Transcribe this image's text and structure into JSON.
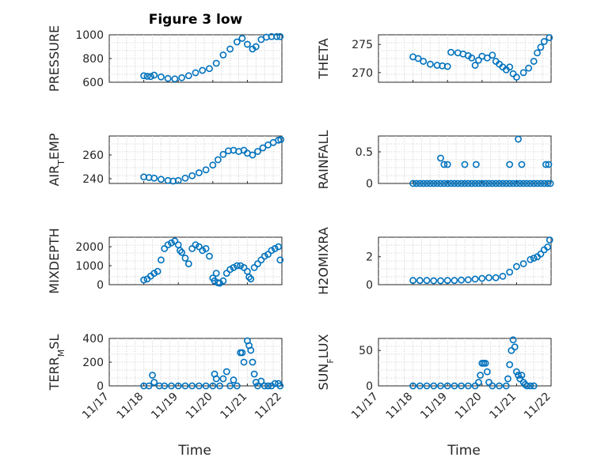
{
  "chart_data": [
    {
      "type": "scatter",
      "title": "Figure 3 low",
      "ylabel": "PRESSURE",
      "ylim": [
        600,
        1000
      ],
      "yticks": [
        {
          "v": 600,
          "t": "600"
        },
        {
          "v": 800,
          "t": "800"
        },
        {
          "v": 1000,
          "t": "1000"
        }
      ],
      "x": [
        18.0,
        18.1,
        18.2,
        18.3,
        18.5,
        18.7,
        18.9,
        19.1,
        19.3,
        19.5,
        19.7,
        19.9,
        20.1,
        20.3,
        20.5,
        20.7,
        20.85,
        21.0,
        21.15,
        21.25,
        21.4,
        21.55,
        21.7,
        21.85,
        21.95
      ],
      "values": [
        655,
        650,
        648,
        660,
        645,
        632,
        628,
        638,
        655,
        680,
        700,
        715,
        760,
        830,
        880,
        940,
        970,
        920,
        880,
        900,
        960,
        980,
        985,
        985,
        985
      ]
    },
    {
      "type": "scatter",
      "title": "",
      "ylabel": "THETA",
      "ylim": [
        268.3,
        276.7
      ],
      "yticks": [
        {
          "v": 270,
          "t": "270"
        },
        {
          "v": 275,
          "t": "275"
        }
      ],
      "x": [
        18.0,
        18.15,
        18.3,
        18.5,
        18.7,
        18.85,
        19.0,
        19.1,
        19.3,
        19.45,
        19.6,
        19.7,
        19.8,
        19.9,
        20.0,
        20.15,
        20.3,
        20.4,
        20.5,
        20.6,
        20.7,
        20.8,
        20.9,
        21.0,
        21.2,
        21.35,
        21.5,
        21.6,
        21.7,
        21.8,
        21.95
      ],
      "values": [
        272.8,
        272.5,
        272.0,
        271.5,
        271.3,
        271.2,
        271.1,
        273.6,
        273.5,
        273.3,
        273.0,
        272.6,
        271.3,
        272.2,
        272.9,
        272.6,
        273.1,
        272.0,
        271.5,
        271.0,
        270.5,
        271.0,
        269.8,
        269.2,
        270.0,
        270.8,
        272.0,
        273.5,
        274.5,
        275.5,
        276.2
      ]
    },
    {
      "type": "scatter",
      "title": "",
      "ylabel": "AIR_TEMP",
      "ylim": [
        236,
        276
      ],
      "yticks": [
        {
          "v": 240,
          "t": "240"
        },
        {
          "v": 260,
          "t": "260"
        }
      ],
      "x": [
        18.0,
        18.15,
        18.3,
        18.5,
        18.7,
        18.85,
        19.0,
        19.2,
        19.4,
        19.6,
        19.8,
        20.0,
        20.15,
        20.3,
        20.45,
        20.6,
        20.75,
        20.9,
        21.0,
        21.15,
        21.3,
        21.45,
        21.6,
        21.75,
        21.9,
        21.97
      ],
      "values": [
        241.5,
        241.0,
        240.5,
        239.5,
        238.5,
        238.0,
        238.5,
        240.5,
        242.5,
        245.0,
        247.5,
        251.5,
        256.0,
        260.5,
        263.5,
        264.0,
        263.0,
        264.0,
        261.5,
        260.0,
        263.0,
        266.0,
        268.5,
        270.5,
        272.5,
        273.0
      ]
    },
    {
      "type": "scatter",
      "title": "",
      "ylabel": "RAINFALL",
      "ylim": [
        0,
        0.75
      ],
      "yticks": [
        {
          "v": 0,
          "t": "0"
        },
        {
          "v": 0.5,
          "t": "0.5"
        }
      ],
      "x": [
        18.0,
        18.1,
        18.2,
        18.3,
        18.4,
        18.5,
        18.6,
        18.7,
        18.8,
        18.9,
        19.0,
        19.1,
        19.2,
        19.3,
        19.4,
        19.5,
        19.6,
        19.7,
        19.8,
        19.9,
        20.0,
        20.1,
        20.2,
        20.3,
        20.4,
        20.5,
        20.6,
        20.7,
        20.8,
        20.9,
        21.0,
        21.1,
        21.2,
        21.3,
        21.4,
        21.5,
        21.6,
        21.7,
        21.8,
        21.9,
        21.98,
        18.8,
        18.9,
        19.0,
        19.5,
        19.83,
        20.8,
        21.05,
        21.15,
        21.85,
        21.93
      ],
      "values": [
        0,
        0,
        0,
        0,
        0,
        0,
        0,
        0,
        0,
        0,
        0,
        0,
        0,
        0,
        0,
        0,
        0,
        0,
        0,
        0,
        0,
        0,
        0,
        0,
        0,
        0,
        0,
        0,
        0,
        0,
        0,
        0,
        0,
        0,
        0,
        0,
        0,
        0,
        0,
        0,
        0,
        0.4,
        0.3,
        0.3,
        0.3,
        0.3,
        0.3,
        0.7,
        0.3,
        0.3,
        0.3
      ]
    },
    {
      "type": "scatter",
      "title": "",
      "ylabel": "MIXDEPTH",
      "ylim": [
        0,
        2500
      ],
      "yticks": [
        {
          "v": 0,
          "t": "0"
        },
        {
          "v": 1000,
          "t": "1000"
        },
        {
          "v": 2000,
          "t": "2000"
        }
      ],
      "x": [
        18.0,
        18.1,
        18.2,
        18.3,
        18.4,
        18.5,
        18.6,
        18.7,
        18.8,
        18.9,
        19.0,
        19.05,
        19.1,
        19.2,
        19.3,
        19.4,
        19.5,
        19.6,
        19.7,
        19.8,
        19.9,
        20.0,
        20.05,
        20.1,
        20.15,
        20.2,
        20.3,
        20.4,
        20.5,
        20.6,
        20.7,
        20.8,
        20.9,
        21.0,
        21.05,
        21.1,
        21.2,
        21.3,
        21.4,
        21.5,
        21.6,
        21.7,
        21.8,
        21.9,
        21.95
      ],
      "values": [
        250,
        300,
        450,
        600,
        700,
        1300,
        1900,
        2100,
        2200,
        2300,
        2100,
        1800,
        1700,
        1400,
        1100,
        1900,
        2100,
        2000,
        1800,
        1900,
        1500,
        350,
        200,
        600,
        100,
        80,
        200,
        600,
        800,
        900,
        1000,
        1000,
        900,
        700,
        400,
        300,
        900,
        1100,
        1300,
        1500,
        1600,
        1800,
        1900,
        2000,
        1300
      ]
    },
    {
      "type": "scatter",
      "title": "",
      "ylabel": "H2OMIXRA",
      "ylim": [
        0,
        3.4
      ],
      "yticks": [
        {
          "v": 0,
          "t": "0"
        },
        {
          "v": 2,
          "t": "2"
        }
      ],
      "x": [
        18.0,
        18.2,
        18.4,
        18.6,
        18.8,
        19.0,
        19.2,
        19.4,
        19.6,
        19.8,
        20.0,
        20.2,
        20.4,
        20.6,
        20.8,
        21.0,
        21.2,
        21.4,
        21.5,
        21.6,
        21.7,
        21.8,
        21.9,
        21.96
      ],
      "values": [
        0.3,
        0.3,
        0.3,
        0.28,
        0.28,
        0.3,
        0.3,
        0.33,
        0.35,
        0.4,
        0.45,
        0.5,
        0.5,
        0.6,
        0.9,
        1.3,
        1.5,
        1.8,
        1.9,
        2.0,
        2.2,
        2.5,
        2.7,
        3.2
      ]
    },
    {
      "type": "scatter",
      "title": "",
      "ylabel": "TERR_MSL",
      "ylim": [
        0,
        400
      ],
      "yticks": [
        {
          "v": 0,
          "t": "0"
        },
        {
          "v": 200,
          "t": "200"
        },
        {
          "v": 400,
          "t": "400"
        }
      ],
      "x": [
        18.0,
        18.15,
        18.25,
        18.3,
        18.45,
        18.6,
        18.8,
        19.0,
        19.2,
        19.4,
        19.6,
        19.8,
        20.0,
        20.05,
        20.1,
        20.2,
        20.3,
        20.4,
        20.5,
        20.6,
        20.7,
        20.8,
        20.85,
        20.9,
        21.0,
        21.05,
        21.1,
        21.15,
        21.2,
        21.25,
        21.3,
        21.4,
        21.5,
        21.6,
        21.7,
        21.8,
        21.9,
        21.95
      ],
      "values": [
        0,
        0,
        90,
        30,
        0,
        0,
        0,
        0,
        0,
        0,
        0,
        0,
        0,
        100,
        60,
        0,
        60,
        120,
        0,
        50,
        0,
        280,
        280,
        200,
        380,
        340,
        300,
        200,
        100,
        30,
        0,
        40,
        0,
        0,
        0,
        20,
        20,
        0
      ]
    },
    {
      "type": "scatter",
      "title": "",
      "ylabel": "SUN_FLUX",
      "ylim": [
        0,
        67
      ],
      "yticks": [
        {
          "v": 0,
          "t": "0"
        },
        {
          "v": 50,
          "t": "50"
        }
      ],
      "x": [
        18.0,
        18.2,
        18.4,
        18.6,
        18.8,
        19.0,
        19.2,
        19.4,
        19.6,
        19.8,
        19.9,
        19.95,
        20.0,
        20.05,
        20.1,
        20.15,
        20.2,
        20.3,
        20.5,
        20.7,
        20.75,
        20.8,
        20.85,
        20.9,
        20.95,
        21.0,
        21.05,
        21.1,
        21.15,
        21.2,
        21.25,
        21.3,
        21.4,
        21.5
      ],
      "values": [
        0,
        0,
        0,
        0,
        0,
        0,
        0,
        0,
        0,
        0,
        5,
        15,
        32,
        32,
        32,
        20,
        5,
        0,
        0,
        0,
        10,
        30,
        50,
        65,
        55,
        20,
        15,
        10,
        15,
        5,
        2,
        0,
        0,
        0
      ]
    }
  ],
  "xticks": [
    "11/17",
    "11/18",
    "11/19",
    "11/20",
    "11/21",
    "11/22"
  ],
  "xlabel": "Time",
  "series_color": "#0072BD"
}
